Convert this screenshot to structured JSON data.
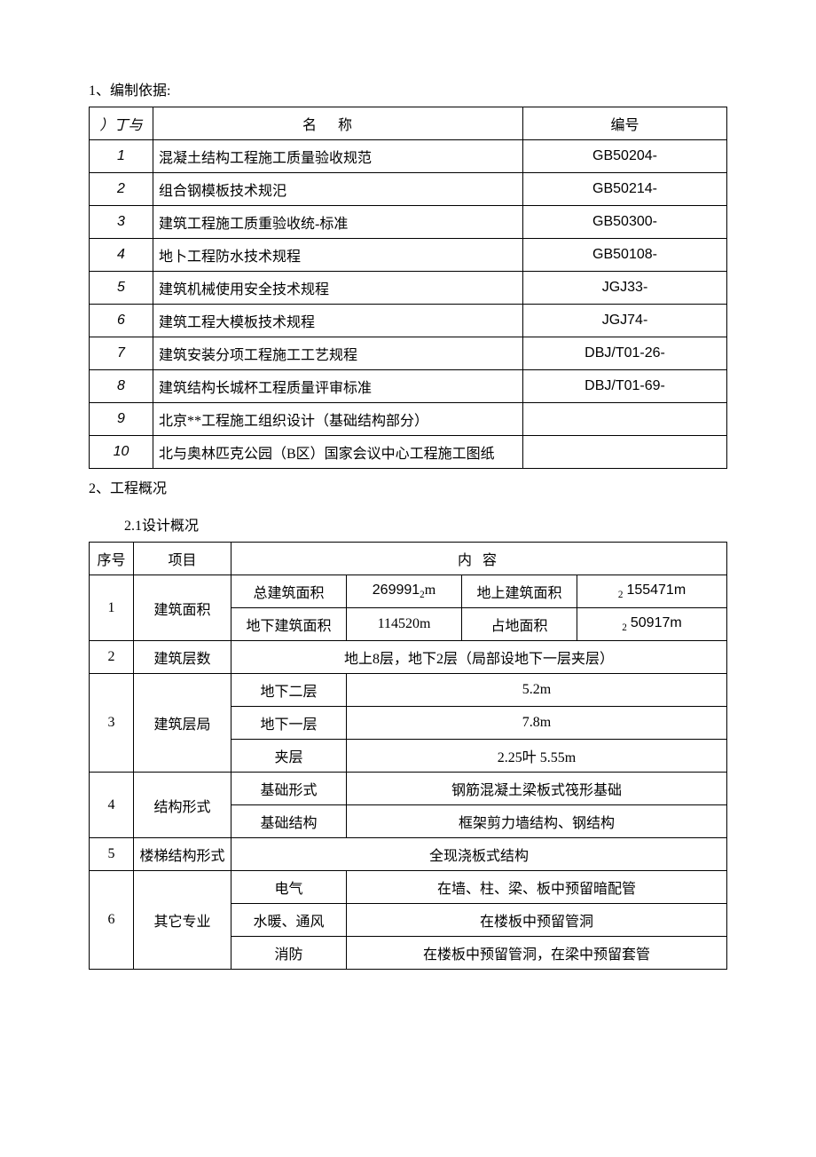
{
  "section1": {
    "title": "1、编制依据:",
    "headers": {
      "seq": "）丁与",
      "name": "名称",
      "code": "编号"
    },
    "rows": [
      {
        "seq": "1",
        "name": "混凝土结构工程施工质量验收规范",
        "code": "GB50204-"
      },
      {
        "seq": "2",
        "name": "组合钢模板技术规汜",
        "code": "GB50214-"
      },
      {
        "seq": "3",
        "name": "建筑工程施工质重验收统-标准",
        "code": "GB50300-"
      },
      {
        "seq": "4",
        "name": "地卜工程防水技术规程",
        "code": "GB50108-"
      },
      {
        "seq": "5",
        "name": "建筑机械使用安全技术规程",
        "code": "JGJ33-"
      },
      {
        "seq": "6",
        "name": "建筑工程大模板技术规程",
        "code": "JGJ74-"
      },
      {
        "seq": "7",
        "name": "建筑安装分项工程施工工艺规程",
        "code": "DBJ/T01-26-"
      },
      {
        "seq": "8",
        "name": "建筑结构长城杯工程质量评审标准",
        "code": "DBJ/T01-69-"
      },
      {
        "seq": "9",
        "name": "北京**工程施工组织设计（基础结构部分）",
        "code": ""
      },
      {
        "seq": "10",
        "name": "北与奥林匹克公园（B区）国家会议中心工程施工图纸",
        "code": ""
      }
    ]
  },
  "section2": {
    "title": "2、工程概况",
    "subtitle": "2.1设计概况",
    "headers": {
      "seq": "序号",
      "item": "项目",
      "content": "内 容"
    },
    "r1": {
      "seq": "1",
      "item": "建筑面积",
      "a1": "总建筑面积",
      "a2": "269991",
      "a2u": "m",
      "a2s": "2",
      "a3": "地上建筑面积",
      "a4": "155471m",
      "a4s": "2",
      "b1": "地下建筑面积",
      "b2": "114520m",
      "b3": "占地面积",
      "b4": "50917m",
      "b4s": "2"
    },
    "r2": {
      "seq": "2",
      "item": "建筑层数",
      "content": "地上8层，地下2层（局部设地下一层夹层）"
    },
    "r3": {
      "seq": "3",
      "item": "建筑层局",
      "a1": "地下二层",
      "a2": "5.2m",
      "b1": "地下一层",
      "b2": "7.8m",
      "c1": "夹层",
      "c2": "2.25叶  5.55m"
    },
    "r4": {
      "seq": "4",
      "item": "结构形式",
      "a1": "基础形式",
      "a2": "钢筋混凝土梁板式筏形基础",
      "b1": "基础结构",
      "b2": "框架剪力墙结构、钢结构"
    },
    "r5": {
      "seq": "5",
      "item": "楼梯结构形式",
      "content": "全现浇板式结构"
    },
    "r6": {
      "seq": "6",
      "item": "其它专业",
      "a1": "电气",
      "a2": "在墙、柱、梁、板中预留暗配管",
      "b1": "水暖、通风",
      "b2": "在楼板中预留管洞",
      "c1": "消防",
      "c2": "在楼板中预留管洞，在梁中预留套管"
    }
  }
}
